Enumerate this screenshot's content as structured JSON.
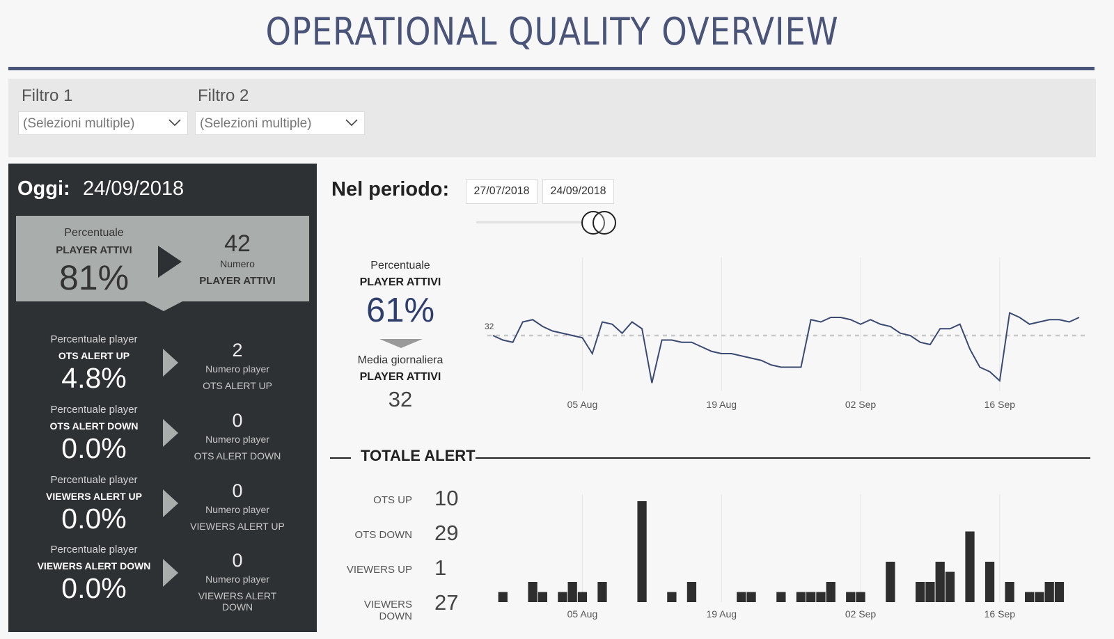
{
  "header": {
    "title": "OPERATIONAL QUALITY OVERVIEW"
  },
  "filters": [
    {
      "label": "Filtro 1",
      "value": "(Selezioni multiple)"
    },
    {
      "label": "Filtro 2",
      "value": "(Selezioni multiple)"
    }
  ],
  "today": {
    "label": "Oggi:",
    "date": "24/09/2018",
    "hero": {
      "pct_caption": "Percentuale",
      "pct_title": "PLAYER ATTIVI",
      "pct_value": "81%",
      "num_value": "42",
      "num_caption": "Numero",
      "num_title": "PLAYER ATTIVI"
    },
    "kpis": [
      {
        "pct_caption": "Percentuale player",
        "pct_title": "OTS ALERT UP",
        "pct_value": "4.8%",
        "num_value": "2",
        "num_caption": "Numero player",
        "num_title": "OTS ALERT UP"
      },
      {
        "pct_caption": "Percentuale player",
        "pct_title": "OTS ALERT DOWN",
        "pct_value": "0.0%",
        "num_value": "0",
        "num_caption": "Numero player",
        "num_title": "OTS ALERT DOWN"
      },
      {
        "pct_caption": "Percentuale player",
        "pct_title": "VIEWERS ALERT UP",
        "pct_value": "0.0%",
        "num_value": "0",
        "num_caption": "Numero player",
        "num_title": "VIEWERS ALERT UP"
      },
      {
        "pct_caption": "Percentuale player",
        "pct_title": "VIEWERS ALERT DOWN",
        "pct_value": "0.0%",
        "num_value": "0",
        "num_caption": "Numero player",
        "num_title": "VIEWERS ALERT DOWN"
      }
    ]
  },
  "period": {
    "label": "Nel periodo:",
    "start": "27/07/2018",
    "end": "24/09/2018",
    "slider_position": 1.0,
    "summary": {
      "pct_caption": "Percentuale",
      "pct_title": "PLAYER ATTIVI",
      "pct_value": "61%",
      "avg_caption": "Media giornaliera",
      "avg_title": "PLAYER ATTIVI",
      "avg_value": "32"
    }
  },
  "alerts": {
    "title": "TOTALE ALERT",
    "rows": [
      {
        "label": "OTS UP",
        "value": "10"
      },
      {
        "label": "OTS DOWN",
        "value": "29"
      },
      {
        "label": "VIEWERS UP",
        "value": "1"
      },
      {
        "label": "VIEWERS DOWN",
        "value": "27"
      }
    ]
  },
  "colors": {
    "navy": "#4a5478",
    "line": "#3b4a72",
    "panel": "#2d3134",
    "hero": "#a9adab",
    "bar": "#2e2e2e"
  },
  "chart_data": [
    {
      "type": "line",
      "x_start": "2018-07-27",
      "x_end": "2018-09-24",
      "x_ticks": [
        "05 Aug",
        "19 Aug",
        "02 Sep",
        "16 Sep"
      ],
      "reference_line": {
        "label": "32",
        "value": 32,
        "style": "dotted"
      },
      "ylim": [
        20,
        48
      ],
      "grid": "vertical",
      "values": [
        32,
        31,
        30.5,
        35,
        35.5,
        34,
        33,
        32.5,
        32,
        31.5,
        28,
        35,
        34.5,
        32.5,
        35,
        33.5,
        21.5,
        31,
        31,
        30.5,
        30.5,
        29.5,
        28.5,
        28,
        28,
        27.5,
        27,
        26.5,
        25.5,
        25,
        25,
        25,
        35.5,
        35,
        36,
        36,
        35.5,
        34.5,
        35.5,
        34.5,
        34,
        32.5,
        32,
        30.5,
        30,
        33.5,
        33.5,
        34.5,
        29,
        25,
        24,
        22,
        37,
        36,
        34.5,
        35,
        35.5,
        35.5,
        35,
        36
      ]
    },
    {
      "type": "bar",
      "x_start": "2018-07-27",
      "x_end": "2018-09-24",
      "x_ticks": [
        "05 Aug",
        "19 Aug",
        "02 Sep",
        "16 Sep"
      ],
      "ylim": [
        0,
        10
      ],
      "grid": "vertical",
      "values": [
        0,
        1,
        0,
        0,
        2,
        1,
        0,
        1,
        2,
        1,
        0,
        2,
        0,
        0,
        0,
        10,
        0,
        0,
        1,
        0,
        2,
        0,
        0,
        0,
        0,
        1,
        1,
        0,
        0,
        1,
        0,
        1,
        1,
        1,
        2,
        0,
        1,
        1,
        0,
        0,
        4,
        0,
        0,
        2,
        2,
        4,
        3,
        0,
        7,
        0,
        4,
        0,
        2,
        0,
        1,
        1,
        2,
        2,
        0,
        0
      ]
    }
  ]
}
